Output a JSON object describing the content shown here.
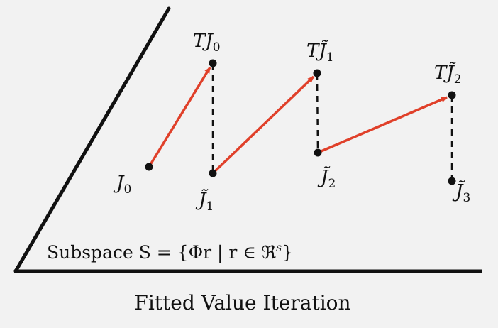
{
  "diagram": {
    "caption": "Fitted Value Iteration",
    "subspace_label": "Subspace S = {Φr | r ∈ ℜ",
    "subspace_label_sup": "s",
    "subspace_label_close": "}",
    "points": {
      "J0": "J",
      "J0_sub": "0",
      "TJ0": "TJ",
      "TJ0_sub": "0",
      "J1": "J̃",
      "J1_sub": "1",
      "TJ1": "TJ̃",
      "TJ1_sub": "1",
      "J2": "J̃",
      "J2_sub": "2",
      "TJ2": "TJ̃",
      "TJ2_sub": "2",
      "J3": "J̃",
      "J3_sub": "3"
    },
    "colors": {
      "arrow": "#e0402a",
      "line": "#111111",
      "background": "#f2f2f2"
    }
  }
}
